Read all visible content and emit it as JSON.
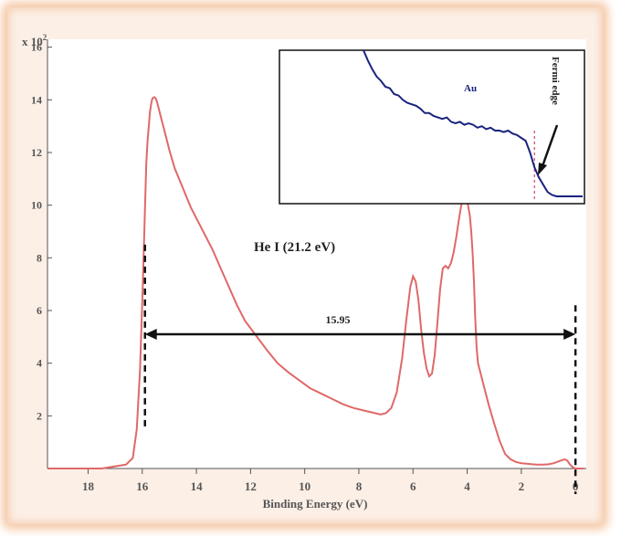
{
  "chart_data": {
    "type": "line",
    "xlabel": "Binding Energy (eV)",
    "ylabel_exponent_prefix": "x 10",
    "ylabel_exponent_power": "2",
    "x_ticks": [
      18,
      16,
      14,
      12,
      10,
      8,
      6,
      4,
      2,
      0
    ],
    "x_tick_labels": [
      "18",
      "16",
      "14",
      "12",
      "10",
      "8",
      "6",
      "4",
      "2",
      "0"
    ],
    "y_ticks": [
      2,
      4,
      6,
      8,
      10,
      12,
      14,
      16
    ],
    "y_tick_labels": [
      "2",
      "4",
      "6",
      "8",
      "10",
      "12",
      "14",
      "16"
    ],
    "xlim": [
      19.5,
      -0.4
    ],
    "ylim": [
      0,
      16.3
    ],
    "x_reversed": true,
    "series": [
      {
        "color": "#e06868",
        "x": [
          19.5,
          17.5,
          16.6,
          16.35,
          16.2,
          16.08,
          15.98,
          15.9,
          15.85,
          15.8,
          15.75,
          15.72,
          15.68,
          15.64,
          15.6,
          15.55,
          15.5,
          15.45,
          15.4,
          15.3,
          15.2,
          15.1,
          15.0,
          14.8,
          14.6,
          14.4,
          14.2,
          14.0,
          13.7,
          13.4,
          13.1,
          12.8,
          12.5,
          12.2,
          11.8,
          11.4,
          11.0,
          10.6,
          10.2,
          9.8,
          9.4,
          9.0,
          8.6,
          8.2,
          7.8,
          7.4,
          7.2,
          7.0,
          6.8,
          6.6,
          6.4,
          6.25,
          6.1,
          6.0,
          5.9,
          5.8,
          5.7,
          5.6,
          5.5,
          5.4,
          5.3,
          5.2,
          5.1,
          5.0,
          4.9,
          4.8,
          4.7,
          4.6,
          4.5,
          4.4,
          4.3,
          4.2,
          4.1,
          4.0,
          3.9,
          3.85,
          3.8,
          3.75,
          3.7,
          3.65,
          3.6,
          3.5,
          3.4,
          3.3,
          3.2,
          3.0,
          2.8,
          2.6,
          2.4,
          2.2,
          2.0,
          1.8,
          1.6,
          1.4,
          1.2,
          1.0,
          0.8,
          0.6,
          0.4,
          0.3,
          0.2,
          0.1,
          0.0,
          -0.1,
          -0.3
        ],
        "y": [
          0.0,
          0.0,
          0.15,
          0.4,
          1.5,
          3.8,
          7.0,
          9.8,
          11.6,
          12.5,
          13.1,
          13.5,
          13.8,
          14.0,
          14.08,
          14.1,
          14.05,
          13.9,
          13.7,
          13.3,
          12.9,
          12.5,
          12.1,
          11.4,
          10.9,
          10.4,
          9.9,
          9.5,
          8.9,
          8.3,
          7.6,
          6.9,
          6.2,
          5.6,
          5.05,
          4.5,
          4.0,
          3.65,
          3.35,
          3.05,
          2.85,
          2.65,
          2.45,
          2.3,
          2.2,
          2.1,
          2.05,
          2.1,
          2.3,
          2.9,
          4.2,
          5.6,
          6.9,
          7.3,
          7.1,
          6.4,
          5.3,
          4.4,
          3.8,
          3.5,
          3.6,
          4.3,
          5.5,
          6.8,
          7.6,
          7.7,
          7.6,
          7.8,
          8.2,
          8.8,
          9.5,
          10.1,
          10.3,
          10.2,
          9.6,
          9.0,
          8.2,
          7.1,
          5.7,
          4.6,
          4.0,
          3.6,
          3.2,
          2.8,
          2.4,
          1.7,
          1.05,
          0.55,
          0.35,
          0.25,
          0.2,
          0.18,
          0.16,
          0.15,
          0.15,
          0.16,
          0.2,
          0.28,
          0.35,
          0.3,
          0.15,
          0.05,
          0.0,
          0.0,
          0.0
        ]
      }
    ],
    "annotations": {
      "title_label": "He I (21.2 eV)",
      "width_label": "15.95",
      "left_cutoff_x": 15.9,
      "right_cutoff_x": 0.0,
      "arrow_y": 5.1
    },
    "inset": {
      "label": "Au",
      "edge_label": "Fermi edge",
      "line_color": "#1a237e",
      "marker_color": "#c2185b",
      "x": [
        0,
        2,
        4,
        6,
        8,
        10,
        12,
        14,
        16,
        18,
        20,
        22,
        24,
        26,
        28,
        30,
        32,
        34,
        36,
        38,
        40,
        42,
        44,
        46,
        48,
        50,
        52,
        54,
        56,
        58,
        60,
        62,
        64,
        66,
        68,
        70,
        72,
        74,
        76,
        78,
        80,
        82,
        84,
        86,
        88,
        90,
        92,
        94,
        96,
        98,
        100
      ],
      "y": [
        1.0,
        0.93,
        0.87,
        0.82,
        0.79,
        0.75,
        0.74,
        0.7,
        0.69,
        0.66,
        0.64,
        0.63,
        0.62,
        0.6,
        0.57,
        0.57,
        0.55,
        0.54,
        0.53,
        0.54,
        0.51,
        0.5,
        0.51,
        0.49,
        0.5,
        0.49,
        0.47,
        0.48,
        0.46,
        0.47,
        0.45,
        0.45,
        0.44,
        0.45,
        0.43,
        0.42,
        0.4,
        0.38,
        0.3,
        0.2,
        0.13,
        0.08,
        0.03,
        0.01,
        0.0,
        0.0,
        0.0,
        0.0,
        0.0,
        0.0,
        0.0
      ],
      "fermi_marker_x": 78
    }
  }
}
